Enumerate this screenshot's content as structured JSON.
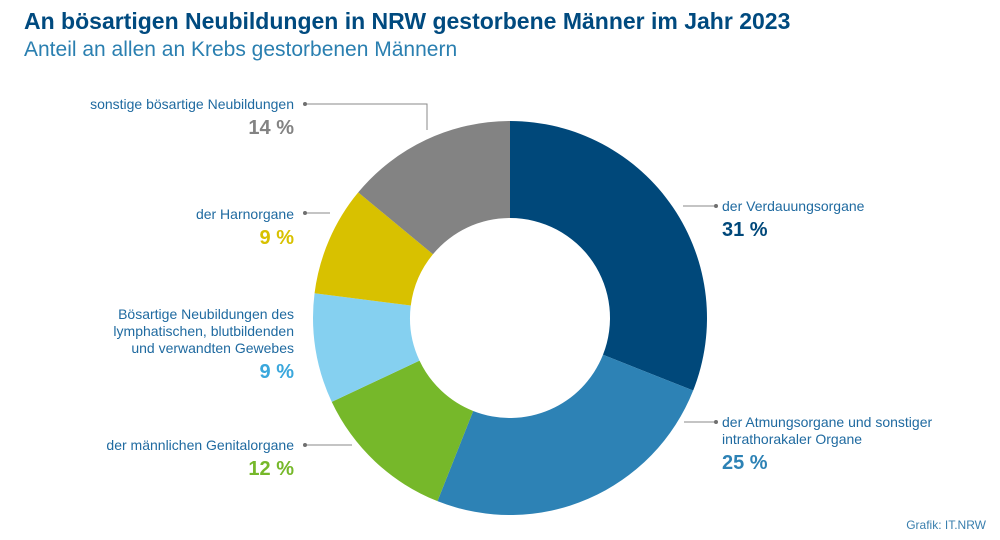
{
  "header": {
    "title": "An bösartigen Neubildungen in NRW gestorbene Männer im Jahr 2023",
    "subtitle": "Anteil an allen an Krebs gestorbenen Männern"
  },
  "source": "Grafik: IT.NRW",
  "chart_data": {
    "type": "pie",
    "donut": true,
    "slices": [
      {
        "label": "der Verdauungsorgane",
        "value": 31,
        "display": "31 %",
        "color": "#00487a"
      },
      {
        "label": "der Atmungsorgane und sonstiger intrathorakaler Organe",
        "value": 25,
        "display": "25 %",
        "color": "#2d82b5"
      },
      {
        "label": "der männlichen Genitalorgane",
        "value": 12,
        "display": "12 %",
        "color": "#76b82a"
      },
      {
        "label": "Bösartige Neubildungen des lymphatischen, blutbildenden und verwandten Gewebes",
        "value": 9,
        "display": "9 %",
        "color": "#85d0f0"
      },
      {
        "label": "der Harnorgane",
        "value": 9,
        "display": "9 %",
        "color": "#d8c100"
      },
      {
        "label": "sonstige bösartige Neubildungen",
        "value": 14,
        "display": "14 %",
        "color": "#838383"
      }
    ]
  }
}
